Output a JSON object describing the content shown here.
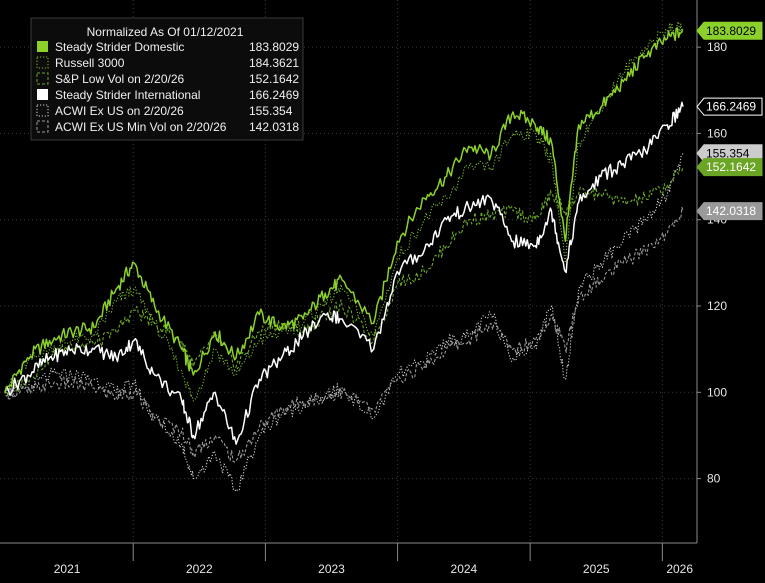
{
  "chart_data": {
    "type": "line",
    "legend": {
      "title": "Normalized As Of 01/12/2021",
      "placement": "top-left"
    },
    "x_labels": [
      "2021",
      "2022",
      "2023",
      "2024",
      "2025",
      "2026"
    ],
    "x_range": [
      "2021-01-12",
      "2026-02-27"
    ],
    "y_ticks": [
      80,
      100,
      120,
      140,
      160,
      180
    ],
    "ylim": [
      66,
      190
    ],
    "grid": true,
    "series": [
      {
        "name": "Steady Strider Domestic",
        "last_label": "183.8029",
        "color": "#8cd12b",
        "style": "solid",
        "tag_bg": "#8cd12b",
        "tag_fg": "#000000",
        "x": [
          "2021-01-12",
          "2021-03-15",
          "2021-05-15",
          "2021-07-15",
          "2021-09-15",
          "2021-11-15",
          "2022-01-03",
          "2022-03-01",
          "2022-05-15",
          "2022-06-16",
          "2022-08-15",
          "2022-10-12",
          "2022-12-15",
          "2023-02-15",
          "2023-04-15",
          "2023-06-15",
          "2023-08-01",
          "2023-10-27",
          "2023-12-31",
          "2024-03-15",
          "2024-05-15",
          "2024-07-15",
          "2024-09-15",
          "2024-11-15",
          "2025-01-15",
          "2025-03-01",
          "2025-04-08",
          "2025-05-15",
          "2025-07-15",
          "2025-09-15",
          "2025-11-15",
          "2026-01-15",
          "2026-02-27"
        ],
        "y": [
          100,
          108,
          112,
          114,
          115,
          124,
          130,
          120,
          110,
          104,
          114,
          108,
          118,
          115,
          117,
          123,
          126,
          116,
          135,
          145,
          150,
          157,
          155,
          165,
          162,
          158,
          135,
          162,
          166,
          172,
          178,
          182,
          183.8
        ]
      },
      {
        "name": "Russell 3000",
        "last_label": "184.3621",
        "color": "#7cb82e",
        "style": "dotted",
        "tag_bg": null,
        "tag_fg": null,
        "x": [
          "2021-01-12",
          "2021-03-15",
          "2021-05-15",
          "2021-07-15",
          "2021-09-15",
          "2021-11-15",
          "2022-01-03",
          "2022-03-01",
          "2022-05-15",
          "2022-06-16",
          "2022-08-15",
          "2022-10-12",
          "2022-12-15",
          "2023-02-15",
          "2023-04-15",
          "2023-06-15",
          "2023-08-01",
          "2023-10-27",
          "2023-12-31",
          "2024-03-15",
          "2024-05-15",
          "2024-07-15",
          "2024-09-15",
          "2024-11-15",
          "2025-01-15",
          "2025-03-01",
          "2025-04-08",
          "2025-05-15",
          "2025-07-15",
          "2025-09-15",
          "2025-11-15",
          "2026-01-15",
          "2026-02-27"
        ],
        "y": [
          100,
          107,
          110,
          112,
          113,
          121,
          124,
          116,
          105,
          98,
          110,
          104,
          112,
          114,
          116,
          121,
          124,
          113,
          131,
          140,
          145,
          152,
          152,
          160,
          160,
          154,
          130,
          158,
          166,
          174,
          180,
          184,
          184.4
        ]
      },
      {
        "name": "S&P Low Vol on 2/20/26",
        "last_label": "152.1642",
        "color": "#6aa624",
        "style": "dashed",
        "tag_bg": "#6aa624",
        "tag_fg": "#ffffff",
        "x": [
          "2021-01-12",
          "2021-03-15",
          "2021-05-15",
          "2021-07-15",
          "2021-09-15",
          "2021-11-15",
          "2022-01-03",
          "2022-03-01",
          "2022-05-15",
          "2022-06-16",
          "2022-08-15",
          "2022-10-12",
          "2022-12-15",
          "2023-02-15",
          "2023-04-15",
          "2023-06-15",
          "2023-08-01",
          "2023-10-27",
          "2023-12-31",
          "2024-03-15",
          "2024-05-15",
          "2024-07-15",
          "2024-09-15",
          "2024-11-15",
          "2025-01-15",
          "2025-03-01",
          "2025-04-08",
          "2025-05-15",
          "2025-07-15",
          "2025-09-15",
          "2025-11-15",
          "2026-01-15",
          "2026-02-27"
        ],
        "y": [
          100,
          103,
          108,
          111,
          111,
          114,
          119,
          116,
          112,
          106,
          113,
          106,
          114,
          116,
          114,
          118,
          120,
          112,
          125,
          128,
          134,
          140,
          141,
          142,
          140,
          146,
          142,
          146,
          146,
          144,
          145,
          148,
          152.2
        ]
      },
      {
        "name": "Steady Strider International",
        "last_label": "166.2469",
        "color": "#ffffff",
        "style": "solid",
        "tag_bg": "#000000",
        "tag_fg": "#ffffff",
        "x": [
          "2021-01-12",
          "2021-03-15",
          "2021-05-15",
          "2021-07-15",
          "2021-09-15",
          "2021-11-15",
          "2022-01-03",
          "2022-03-01",
          "2022-05-15",
          "2022-06-16",
          "2022-08-15",
          "2022-10-12",
          "2022-12-15",
          "2023-02-15",
          "2023-04-15",
          "2023-06-15",
          "2023-08-01",
          "2023-10-27",
          "2023-12-31",
          "2024-03-15",
          "2024-05-15",
          "2024-07-15",
          "2024-09-15",
          "2024-11-15",
          "2025-01-15",
          "2025-03-01",
          "2025-04-08",
          "2025-05-15",
          "2025-07-15",
          "2025-09-15",
          "2025-11-15",
          "2026-01-15",
          "2026-02-27"
        ],
        "y": [
          100,
          104,
          108,
          110,
          110,
          108,
          112,
          104,
          98,
          90,
          100,
          88,
          103,
          108,
          113,
          118,
          117,
          110,
          128,
          133,
          140,
          143,
          145,
          135,
          134,
          142,
          128,
          144,
          150,
          153,
          156,
          162,
          166.2
        ]
      },
      {
        "name": "ACWI Ex US on 2/20/26",
        "last_label": "155.354",
        "color": "#cfcfcf",
        "style": "dotted",
        "tag_bg": "#cccccc",
        "tag_fg": "#000000",
        "x": [
          "2021-01-12",
          "2021-03-15",
          "2021-05-15",
          "2021-07-15",
          "2021-09-15",
          "2021-11-15",
          "2022-01-03",
          "2022-03-01",
          "2022-05-15",
          "2022-06-16",
          "2022-08-15",
          "2022-10-12",
          "2022-12-15",
          "2023-02-15",
          "2023-04-15",
          "2023-06-15",
          "2023-08-01",
          "2023-10-27",
          "2023-12-31",
          "2024-03-15",
          "2024-05-15",
          "2024-07-15",
          "2024-09-15",
          "2024-11-15",
          "2025-01-15",
          "2025-03-01",
          "2025-04-08",
          "2025-05-15",
          "2025-07-15",
          "2025-09-15",
          "2025-11-15",
          "2026-01-15",
          "2026-02-27"
        ],
        "y": [
          100,
          101,
          104,
          104,
          103,
          100,
          102,
          94,
          88,
          80,
          86,
          77,
          90,
          95,
          97,
          99,
          101,
          94,
          104,
          107,
          112,
          113,
          118,
          108,
          111,
          120,
          103,
          124,
          130,
          135,
          140,
          146,
          155.4
        ]
      },
      {
        "name": "ACWI Ex US Min Vol on 2/20/26",
        "last_label": "142.0318",
        "color": "#9a9a9a",
        "style": "dashed",
        "tag_bg": "#9a9a9a",
        "tag_fg": "#ffffff",
        "x": [
          "2021-01-12",
          "2021-03-15",
          "2021-05-15",
          "2021-07-15",
          "2021-09-15",
          "2021-11-15",
          "2022-01-03",
          "2022-03-01",
          "2022-05-15",
          "2022-06-16",
          "2022-08-15",
          "2022-10-12",
          "2022-12-15",
          "2023-02-15",
          "2023-04-15",
          "2023-06-15",
          "2023-08-01",
          "2023-10-27",
          "2023-12-31",
          "2024-03-15",
          "2024-05-15",
          "2024-07-15",
          "2024-09-15",
          "2024-11-15",
          "2025-01-15",
          "2025-03-01",
          "2025-04-08",
          "2025-05-15",
          "2025-07-15",
          "2025-09-15",
          "2025-11-15",
          "2026-01-15",
          "2026-02-27"
        ],
        "y": [
          100,
          100,
          102,
          102,
          101,
          99,
          100,
          94,
          91,
          86,
          90,
          84,
          92,
          96,
          98,
          99,
          100,
          96,
          103,
          106,
          110,
          112,
          116,
          110,
          112,
          118,
          110,
          122,
          126,
          130,
          133,
          137,
          142.0
        ]
      }
    ]
  }
}
